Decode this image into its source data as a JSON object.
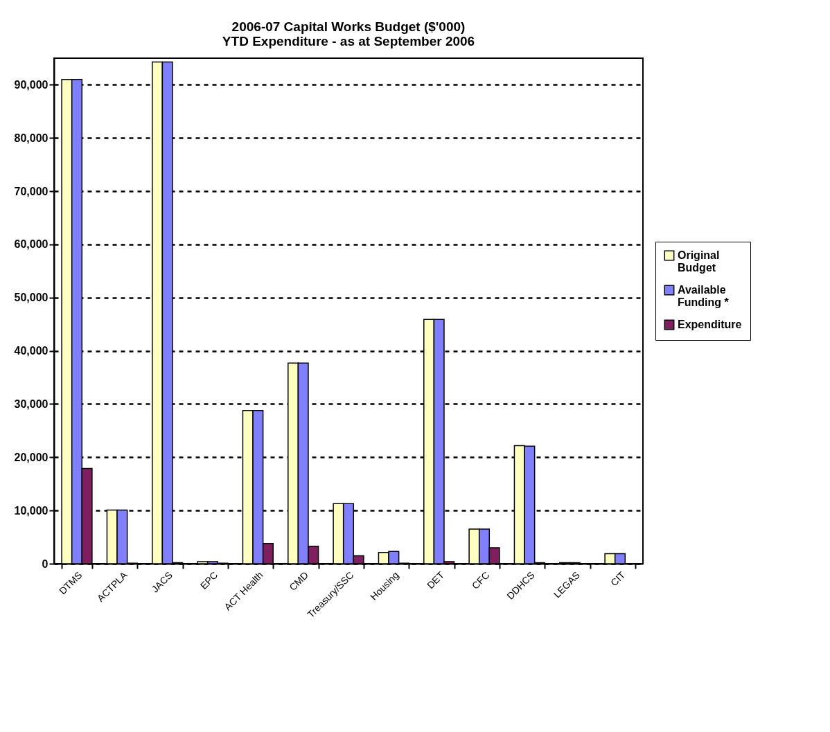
{
  "chart_data": {
    "type": "bar",
    "title": [
      "2006-07 Capital Works Budget ($'000)",
      "YTD Expenditure - as at September 2006"
    ],
    "categories": [
      "DTMS",
      "ACTPLA",
      "JACS",
      "EPC",
      "ACT Health",
      "CMD",
      "Treasury/SSC",
      "Housing",
      "DET",
      "CFC",
      "DDHCS",
      "LEGAS",
      "CIT"
    ],
    "series": [
      {
        "name": "Original Budget",
        "color": "#ffffc0",
        "values": [
          91000,
          10100,
          94300,
          400,
          28800,
          37700,
          11300,
          2100,
          45900,
          6500,
          22200,
          200,
          1900
        ]
      },
      {
        "name": "Available Funding *",
        "color": "#8080ff",
        "values": [
          91000,
          10100,
          94300,
          400,
          28800,
          37700,
          11300,
          2300,
          45900,
          6500,
          22100,
          200,
          1900
        ]
      },
      {
        "name": "Expenditure",
        "color": "#801f5f",
        "values": [
          17900,
          100,
          200,
          100,
          3800,
          3300,
          1500,
          100,
          400,
          3000,
          200,
          null,
          null
        ]
      }
    ],
    "ylim": [
      0,
      95000
    ],
    "yticks": [
      0,
      {
        "value": 10000,
        "label": "10,000"
      },
      {
        "value": 20000,
        "label": "20,000"
      },
      {
        "value": 30000,
        "label": "30,000"
      },
      {
        "value": 40000,
        "label": "40,000"
      },
      {
        "value": 50000,
        "label": "50,000"
      },
      {
        "value": 60000,
        "label": "60,000"
      },
      {
        "value": 70000,
        "label": "70,000"
      },
      {
        "value": 80000,
        "label": "80,000"
      },
      {
        "value": 90000,
        "label": "90,000"
      }
    ],
    "grid": "y",
    "legend": "right"
  }
}
